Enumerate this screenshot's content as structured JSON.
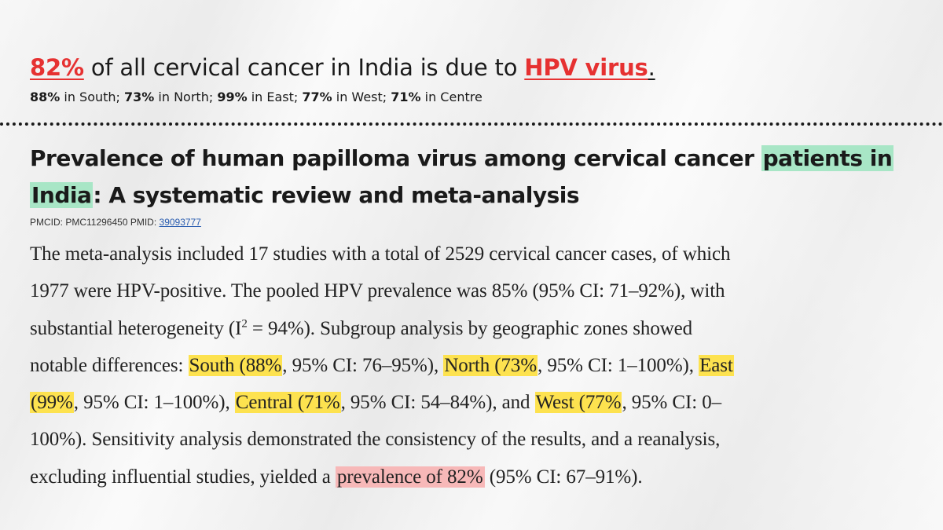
{
  "headline": {
    "percent": "82%",
    "middle": " of all cervical cancer in India is due to ",
    "cause": "HPV virus",
    "end": "."
  },
  "regional": [
    {
      "value": "88%",
      "text": " in South; "
    },
    {
      "value": "73%",
      "text": " in North; "
    },
    {
      "value": "99%",
      "text": " in East; "
    },
    {
      "value": "77%",
      "text": " in West; "
    },
    {
      "value": "71%",
      "text": " in Centre"
    }
  ],
  "paper": {
    "title_part1": "Prevalence of human papilloma virus among cervical cancer ",
    "title_hl1": "patients in",
    "title_hl2": "India",
    "title_part2": ": A systematic review and meta-analysis",
    "ids_prefix": "PMCID: PMC11296450  PMID: ",
    "pmid": "39093777"
  },
  "abstract": {
    "l1": "The meta-analysis included 17 studies with a total of 2529 cervical cancer cases, of which",
    "l2": "1977 were HPV-positive. The pooled HPV prevalence was 85% (95% CI: 71–92%), with",
    "l3a": "substantial heterogeneity (I",
    "l3sup": "2",
    "l3b": " = 94%). Subgroup analysis by geographic zones showed",
    "l4a": "notable differences: ",
    "l4h1": "South (88%",
    "l4b": ", 95% CI: 76–95%), ",
    "l4h2": "North (73%",
    "l4c": ", 95% CI: 1–100%), ",
    "l4h3": "East",
    "l5h1": "(99%",
    "l5a": ", 95% CI: 1–100%), ",
    "l5h2": "Central (71%",
    "l5b": ", 95% CI: 54–84%), and ",
    "l5h3": "West (77%",
    "l5c": ", 95% CI: 0–",
    "l6": "100%). Sensitivity analysis demonstrated the consistency of the results, and a reanalysis,",
    "l7a": "excluding influential studies, yielded a ",
    "l7h": "prevalence of 82%",
    "l7b": " (95% CI: 67–91%)."
  },
  "colors": {
    "accent_red": "#e63131",
    "highlight_green": "#a8e6c6",
    "highlight_yellow": "#fde24f",
    "highlight_pink": "#f7b8b8"
  }
}
